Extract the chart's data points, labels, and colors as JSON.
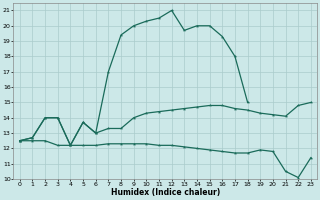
{
  "xlabel": "Humidex (Indice chaleur)",
  "x_ticks": [
    0,
    1,
    2,
    3,
    4,
    5,
    6,
    7,
    8,
    9,
    10,
    11,
    12,
    13,
    14,
    15,
    16,
    17,
    18,
    19,
    20,
    21,
    22,
    23
  ],
  "ylim": [
    10,
    21.5
  ],
  "xlim": [
    -0.5,
    23.5
  ],
  "y_ticks": [
    10,
    11,
    12,
    13,
    14,
    15,
    16,
    17,
    18,
    19,
    20,
    21
  ],
  "bg_color": "#cce8e8",
  "grid_color": "#aacccc",
  "line_color": "#1a6b5a",
  "curve_main_x": [
    0,
    1,
    2,
    3,
    4,
    5,
    6,
    7,
    8,
    9,
    10,
    11,
    12,
    13,
    14,
    15,
    16,
    17,
    18
  ],
  "curve_main_y": [
    12.5,
    12.7,
    14.0,
    14.0,
    12.2,
    13.7,
    13.0,
    17.0,
    19.4,
    20.0,
    20.3,
    20.5,
    21.0,
    19.7,
    20.0,
    20.0,
    19.3,
    18.0,
    15.0
  ],
  "curve_mid_x": [
    0,
    1,
    2,
    3,
    4,
    5,
    6,
    7,
    8,
    9,
    10,
    11,
    12,
    13,
    14,
    15,
    16,
    17,
    18,
    19,
    20,
    21,
    22,
    23
  ],
  "curve_mid_y": [
    12.5,
    12.7,
    14.0,
    14.0,
    12.2,
    13.7,
    13.0,
    13.3,
    13.3,
    14.0,
    14.3,
    14.4,
    14.5,
    14.6,
    14.7,
    14.8,
    14.8,
    14.6,
    14.5,
    14.3,
    14.2,
    14.1,
    14.8,
    15.0
  ],
  "curve_low_x": [
    0,
    1,
    2,
    3,
    4,
    5,
    6,
    7,
    8,
    9,
    10,
    11,
    12,
    13,
    14,
    15,
    16,
    17,
    18,
    19,
    20,
    21,
    22,
    23
  ],
  "curve_low_y": [
    12.5,
    12.5,
    12.5,
    12.2,
    12.2,
    12.2,
    12.2,
    12.3,
    12.3,
    12.3,
    12.3,
    12.2,
    12.2,
    12.1,
    12.0,
    11.9,
    11.8,
    11.7,
    11.7,
    11.9,
    11.8,
    10.5,
    10.1,
    11.4
  ]
}
